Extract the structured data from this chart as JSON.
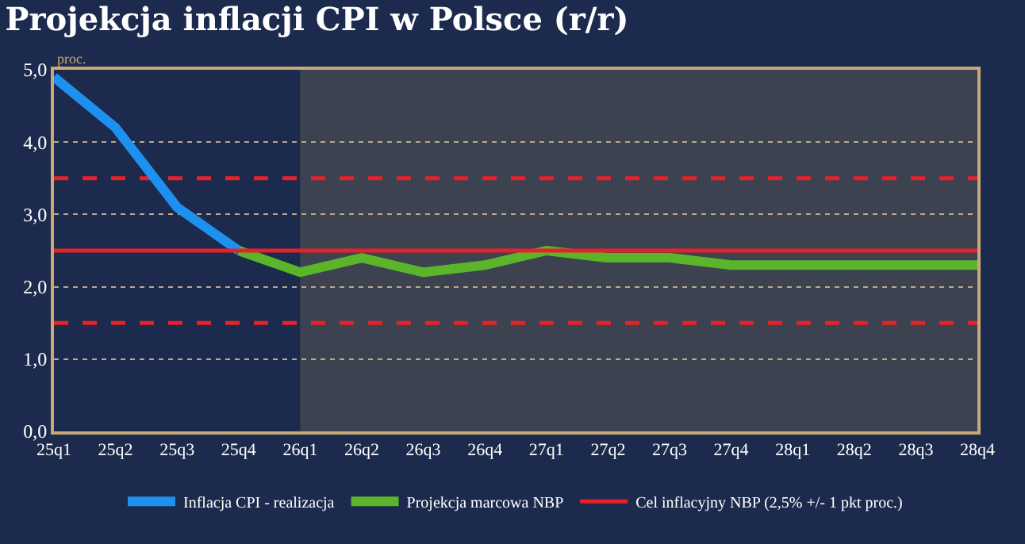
{
  "chart_data": {
    "type": "line",
    "title": "Projekcja inflacji CPI w Polsce (r/r)",
    "ylabel": "proc.",
    "categories": [
      "25q1",
      "25q2",
      "25q3",
      "25q4",
      "26q1",
      "26q2",
      "26q3",
      "26q4",
      "27q1",
      "27q2",
      "27q3",
      "27q4",
      "28q1",
      "28q2",
      "28q3",
      "28q4"
    ],
    "series": [
      {
        "name": "Inflacja CPI - realizacja",
        "color": "#1e90f0",
        "values": [
          4.9,
          4.2,
          3.1,
          2.5,
          null,
          null,
          null,
          null,
          null,
          null,
          null,
          null,
          null,
          null,
          null,
          null
        ]
      },
      {
        "name": "Projekcja marcowa NBP",
        "color": "#5ab52a",
        "values": [
          null,
          null,
          null,
          2.5,
          2.2,
          2.4,
          2.2,
          2.3,
          2.5,
          2.4,
          2.4,
          2.3,
          2.3,
          2.3,
          2.3,
          2.3
        ]
      }
    ],
    "ref_lines": [
      {
        "axis": "y",
        "value": 2.5,
        "label": "Cel inflacyjny NBP (2,5% +/- 1 pkt proc.)",
        "color": "#e8202a",
        "line_style": "solid"
      },
      {
        "axis": "y",
        "value": 3.5,
        "color": "#e8202a",
        "line_style": "dashed"
      },
      {
        "axis": "y",
        "value": 1.5,
        "color": "#e8202a",
        "line_style": "dashed"
      }
    ],
    "bands": [
      {
        "axis": "x",
        "from": "26q1",
        "to": "28q4",
        "color": "#3d4250"
      }
    ],
    "ylim": [
      0,
      5
    ],
    "yticks": [
      {
        "value": 0,
        "label": "0,0"
      },
      {
        "value": 1,
        "label": "1,0"
      },
      {
        "value": 2,
        "label": "2,0"
      },
      {
        "value": 3,
        "label": "3,0"
      },
      {
        "value": 4,
        "label": "4,0"
      },
      {
        "value": 5,
        "label": "5,0"
      }
    ],
    "grid": "y",
    "legend": "bottom",
    "marker": "none",
    "line_style": "solid"
  }
}
